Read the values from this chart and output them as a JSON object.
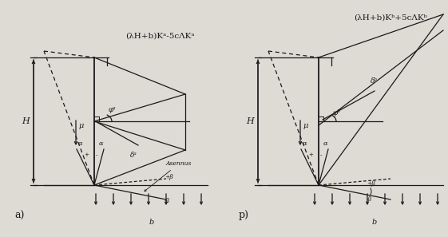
{
  "background_color": "#dedad4",
  "line_color": "#1a1a1a",
  "fig_width": 5.61,
  "fig_height": 2.97,
  "dpi": 100,
  "notes": {
    "diagram_a_formula": "(λH+b)Kᵃ-5cΛKᵃ",
    "diagram_b_formula": "(λH+b)Kᵇ+5cΛKᵇ",
    "label_a": "a)",
    "label_b": "p)"
  }
}
